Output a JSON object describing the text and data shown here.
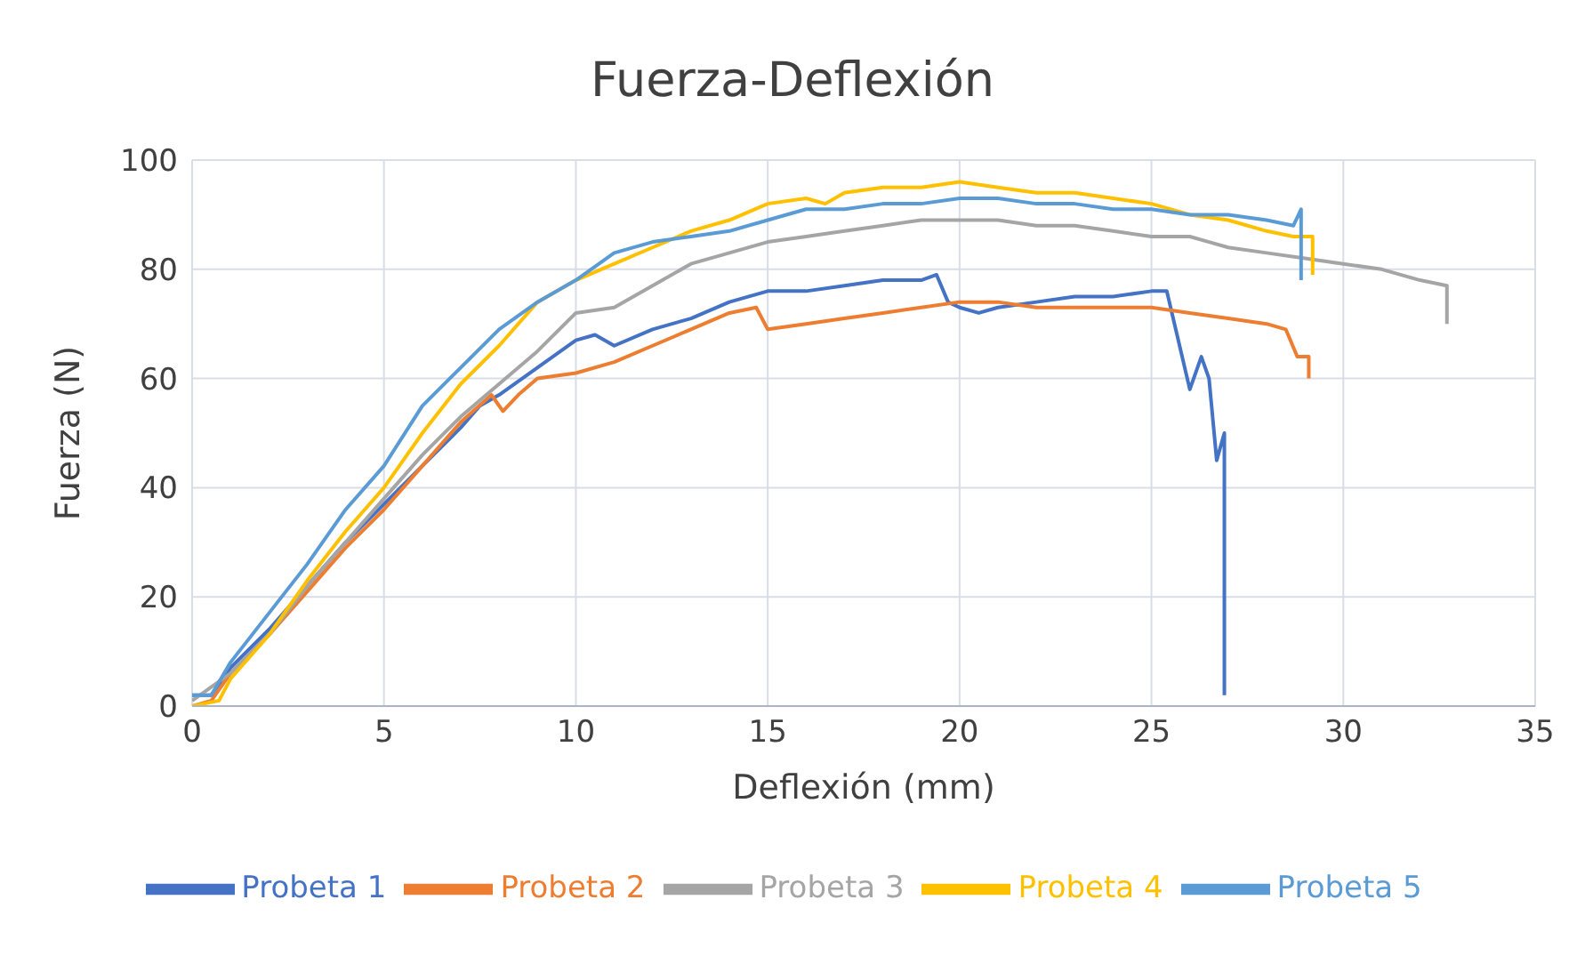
{
  "chart_data": {
    "type": "line",
    "title": "Fuerza-Deflexión",
    "xlabel": "Deflexión (mm)",
    "ylabel": "Fuerza (N)",
    "xlim": [
      0,
      35
    ],
    "xticks": [
      0,
      5,
      10,
      15,
      20,
      25,
      30,
      35
    ],
    "ylim": [
      0,
      100
    ],
    "yticks": [
      0,
      20,
      40,
      60,
      80,
      100
    ],
    "grid": true,
    "legend": "bottom",
    "marker": "none",
    "line_style": "solid",
    "series": [
      {
        "name": "Probeta 1",
        "color": "#4472c4",
        "x": [
          0,
          0.5,
          1,
          2,
          3,
          4,
          5,
          6,
          7,
          7.5,
          8,
          9,
          10,
          10.5,
          11,
          12,
          13,
          14,
          15,
          16,
          17,
          18,
          19,
          19.4,
          19.7,
          20,
          20.5,
          21,
          22,
          23,
          24,
          25,
          25.4,
          25.6,
          26,
          26.3,
          26.5,
          26.7,
          26.9,
          26.9
        ],
        "values": [
          2,
          2,
          7,
          14,
          22,
          30,
          37,
          44,
          51,
          55,
          57,
          62,
          67,
          68,
          66,
          69,
          71,
          74,
          76,
          76,
          77,
          78,
          78,
          79,
          74,
          73,
          72,
          73,
          74,
          75,
          75,
          76,
          76,
          70,
          58,
          64,
          60,
          45,
          50,
          2
        ]
      },
      {
        "name": "Probeta 2",
        "color": "#ed7d31",
        "x": [
          0,
          0.5,
          1,
          2,
          3,
          4,
          5,
          6,
          7,
          7.8,
          8.1,
          8.5,
          9,
          10,
          11,
          12,
          13,
          14,
          14.7,
          15,
          16,
          17,
          18,
          19,
          20,
          21,
          22,
          23,
          25,
          26,
          27,
          28,
          28.5,
          28.8,
          29.1,
          29.1
        ],
        "values": [
          0,
          1,
          6,
          13,
          21,
          29,
          36,
          44,
          52,
          57,
          54,
          57,
          60,
          61,
          63,
          66,
          69,
          72,
          73,
          69,
          70,
          71,
          72,
          73,
          74,
          74,
          73,
          73,
          73,
          72,
          71,
          70,
          69,
          64,
          64,
          60
        ]
      },
      {
        "name": "Probeta 3",
        "color": "#a5a5a5",
        "x": [
          0,
          1,
          2,
          3,
          4,
          5,
          6,
          7,
          8,
          9,
          10,
          11,
          12,
          13,
          14,
          15,
          16,
          17,
          18,
          19,
          20,
          21,
          22,
          23,
          24,
          25,
          26,
          26.5,
          27,
          28,
          29,
          30,
          31,
          32,
          32.7,
          32.7
        ],
        "values": [
          1,
          6,
          13,
          22,
          30,
          38,
          46,
          53,
          59,
          65,
          72,
          73,
          77,
          81,
          83,
          85,
          86,
          87,
          88,
          89,
          89,
          89,
          88,
          88,
          87,
          86,
          86,
          85,
          84,
          83,
          82,
          81,
          80,
          78,
          77,
          70
        ]
      },
      {
        "name": "Probeta 4",
        "color": "#ffc000",
        "x": [
          0,
          0.7,
          1,
          2,
          3,
          4,
          5,
          6,
          7,
          8,
          9,
          10,
          11,
          12,
          13,
          14,
          15,
          16,
          16.5,
          17,
          18,
          19,
          20,
          21,
          22,
          23,
          24,
          25,
          26,
          27,
          28,
          28.7,
          29.2,
          29.2
        ],
        "values": [
          0,
          1,
          5,
          13,
          23,
          32,
          40,
          50,
          59,
          66,
          74,
          78,
          81,
          84,
          87,
          89,
          92,
          93,
          92,
          94,
          95,
          95,
          96,
          95,
          94,
          94,
          93,
          92,
          90,
          89,
          87,
          86,
          86,
          79
        ]
      },
      {
        "name": "Probeta 5",
        "color": "#5b9bd5",
        "x": [
          0,
          0.5,
          1,
          2,
          3,
          4,
          5,
          6,
          7,
          8,
          9,
          10,
          11,
          12,
          13,
          14,
          15,
          16,
          17,
          18,
          19,
          20,
          21,
          22,
          23,
          24,
          25,
          26,
          27,
          28,
          28.7,
          28.9,
          28.9
        ],
        "values": [
          2,
          2,
          8,
          17,
          26,
          36,
          44,
          55,
          62,
          69,
          74,
          78,
          83,
          85,
          86,
          87,
          89,
          91,
          91,
          92,
          92,
          93,
          93,
          92,
          92,
          91,
          91,
          90,
          90,
          89,
          88,
          91,
          78
        ]
      }
    ]
  }
}
